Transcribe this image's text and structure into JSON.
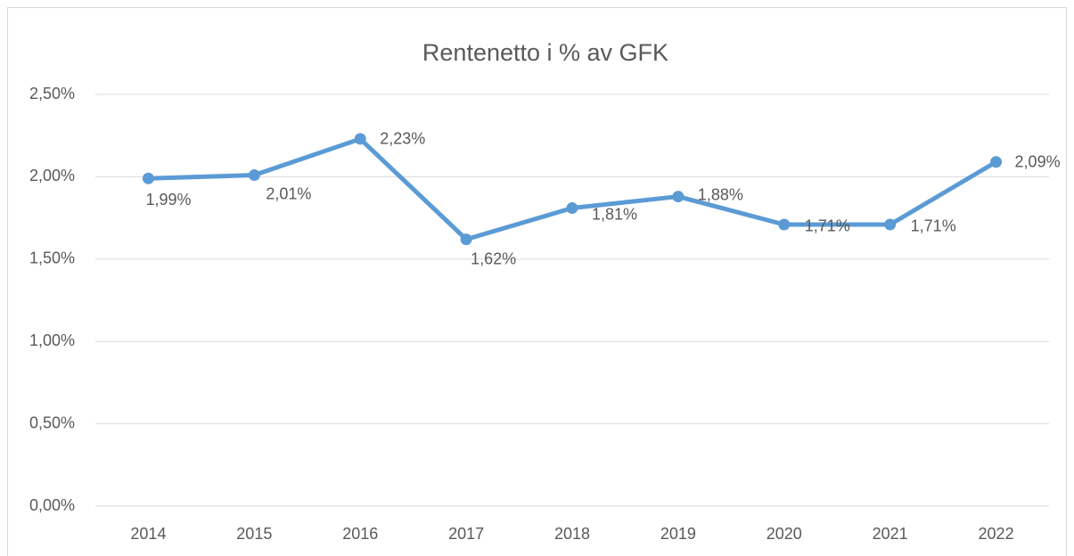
{
  "chart_data": {
    "type": "line",
    "title": "Rentenetto i % av GFK",
    "categories": [
      "2014",
      "2015",
      "2016",
      "2017",
      "2018",
      "2019",
      "2020",
      "2021",
      "2022"
    ],
    "values": [
      1.99,
      2.01,
      2.23,
      1.62,
      1.81,
      1.88,
      1.71,
      1.71,
      2.09
    ],
    "value_labels": [
      "1,99%",
      "2,01%",
      "2,23%",
      "1,62%",
      "1,81%",
      "1,88%",
      "1,71%",
      "1,71%",
      "2,09%"
    ],
    "color": "#5b9bd5",
    "ylim": [
      0,
      2.5
    ],
    "yticks": [
      {
        "value": 0,
        "label": "0,00%"
      },
      {
        "value": 0.5,
        "label": "0,50%"
      },
      {
        "value": 1,
        "label": "1,00%"
      },
      {
        "value": 1.5,
        "label": "1,50%"
      },
      {
        "value": 2,
        "label": "2,00%"
      },
      {
        "value": 2.5,
        "label": "2,50%"
      }
    ],
    "grid": true
  }
}
